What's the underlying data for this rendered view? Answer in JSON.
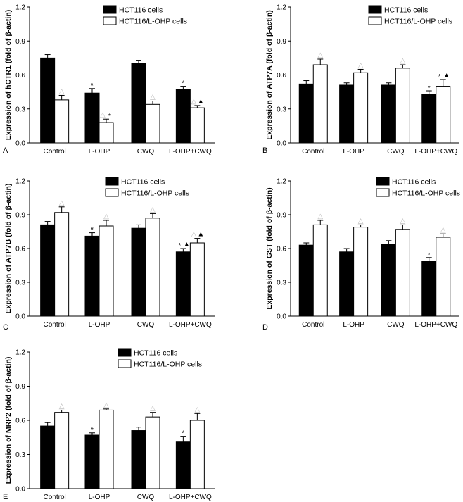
{
  "colors": {
    "series_fill": [
      "#000000",
      "#ffffff"
    ],
    "stroke": "#000000",
    "open_marker": "#bbbbbb",
    "closed_marker": "#000000"
  },
  "marker_symbols": {
    "open": "△",
    "closed": "▲",
    "star": "*"
  },
  "chart_data": [
    {
      "id": "A",
      "type": "bar",
      "panel_label": "A",
      "title": "",
      "xlabel": "",
      "ylabel": "Expression of hCTR1 (fold of β-actin)",
      "ylim": [
        0,
        1.2
      ],
      "yticks": [
        "0.0",
        "0.3",
        "0.6",
        "0.9",
        "1.2"
      ],
      "categories": [
        "Control",
        "L-OHP",
        "CWQ",
        "L-OHP+CWQ"
      ],
      "legend_position": "top-right",
      "series": [
        {
          "name": "HCT116 cells",
          "values": [
            0.75,
            0.44,
            0.7,
            0.47
          ],
          "errors": [
            0.03,
            0.04,
            0.03,
            0.03
          ],
          "marks": [
            [],
            [
              "*"
            ],
            [],
            [
              "*"
            ]
          ]
        },
        {
          "name": "HCT116/L-OHP cells",
          "values": [
            0.38,
            0.18,
            0.34,
            0.31
          ],
          "errors": [
            0.04,
            0.03,
            0.03,
            0.02
          ],
          "marks": [
            [
              "△"
            ],
            [
              "△",
              "*"
            ],
            [
              "△"
            ],
            [
              "△",
              "▲"
            ]
          ]
        }
      ]
    },
    {
      "id": "B",
      "type": "bar",
      "panel_label": "B",
      "title": "",
      "xlabel": "",
      "ylabel": "Expression of ATP7A (fold of β-actin)",
      "ylim": [
        0,
        1.2
      ],
      "yticks": [
        "0.0",
        "0.3",
        "0.6",
        "0.9",
        "1.2"
      ],
      "categories": [
        "Control",
        "L-OHP",
        "CWQ",
        "L-OHP+CWQ"
      ],
      "legend_position": "top-right",
      "series": [
        {
          "name": "HCT116 cells",
          "values": [
            0.52,
            0.51,
            0.51,
            0.43
          ],
          "errors": [
            0.03,
            0.02,
            0.02,
            0.03
          ],
          "marks": [
            [],
            [],
            [],
            [
              "*"
            ]
          ]
        },
        {
          "name": "HCT116/L-OHP cells",
          "values": [
            0.69,
            0.62,
            0.66,
            0.5
          ],
          "errors": [
            0.05,
            0.03,
            0.03,
            0.06
          ],
          "marks": [
            [
              "△"
            ],
            [
              "△"
            ],
            [
              "△"
            ],
            [
              "*",
              "▲"
            ]
          ]
        }
      ]
    },
    {
      "id": "C",
      "type": "bar",
      "panel_label": "C",
      "title": "",
      "xlabel": "",
      "ylabel": "Expression of ATP7B (fold of β-actin)",
      "ylim": [
        0,
        1.2
      ],
      "yticks": [
        "0.0",
        "0.3",
        "0.6",
        "0.9",
        "1.2"
      ],
      "categories": [
        "Control",
        "L-OHP",
        "CWQ",
        "L-OHP+CWQ"
      ],
      "legend_position": "top-right",
      "series": [
        {
          "name": "HCT116 cells",
          "values": [
            0.81,
            0.71,
            0.78,
            0.57
          ],
          "errors": [
            0.03,
            0.03,
            0.03,
            0.03
          ],
          "marks": [
            [],
            [
              "*"
            ],
            [],
            [
              "*",
              "▲"
            ]
          ]
        },
        {
          "name": "HCT116/L-OHP cells",
          "values": [
            0.92,
            0.8,
            0.87,
            0.65
          ],
          "errors": [
            0.05,
            0.05,
            0.04,
            0.04
          ],
          "marks": [
            [
              "△"
            ],
            [
              "△"
            ],
            [
              "△"
            ],
            [
              "△",
              "▲"
            ]
          ]
        }
      ]
    },
    {
      "id": "D",
      "type": "bar",
      "panel_label": "D",
      "title": "",
      "xlabel": "",
      "ylabel": "Expression of GST (fold of β-actin)",
      "ylim": [
        0,
        1.2
      ],
      "yticks": [
        "0.0",
        "0.3",
        "0.6",
        "0.9",
        "1.2"
      ],
      "categories": [
        "Control",
        "L-OHP",
        "CWQ",
        "L-OHP+CWQ"
      ],
      "legend_position": "top-right",
      "series": [
        {
          "name": "HCT116 cells",
          "values": [
            0.63,
            0.57,
            0.64,
            0.49
          ],
          "errors": [
            0.02,
            0.03,
            0.03,
            0.03
          ],
          "marks": [
            [],
            [],
            [],
            [
              "*"
            ]
          ]
        },
        {
          "name": "HCT116/L-OHP cells",
          "values": [
            0.81,
            0.79,
            0.77,
            0.7
          ],
          "errors": [
            0.04,
            0.02,
            0.04,
            0.03
          ],
          "marks": [
            [
              "△"
            ],
            [
              "△"
            ],
            [
              "△"
            ],
            [
              "△"
            ]
          ]
        }
      ]
    },
    {
      "id": "E",
      "type": "bar",
      "panel_label": "E",
      "title": "",
      "xlabel": "",
      "ylabel": "Expression of MRP2 (fold of β-actin)",
      "ylim": [
        0,
        1.2
      ],
      "yticks": [
        "0.0",
        "0.3",
        "0.6",
        "0.9",
        "1.2"
      ],
      "categories": [
        "Control",
        "L-OHP",
        "CWQ",
        "L-OHP+CWQ"
      ],
      "legend_position": "top-right",
      "series": [
        {
          "name": "HCT116 cells",
          "values": [
            0.55,
            0.47,
            0.51,
            0.41
          ],
          "errors": [
            0.03,
            0.02,
            0.03,
            0.05
          ],
          "marks": [
            [],
            [
              "*"
            ],
            [],
            [
              "*"
            ]
          ]
        },
        {
          "name": "HCT116/L-OHP cells",
          "values": [
            0.67,
            0.69,
            0.63,
            0.6
          ],
          "errors": [
            0.02,
            0.01,
            0.04,
            0.06
          ],
          "marks": [
            [
              "△"
            ],
            [
              "△"
            ],
            [
              "△"
            ],
            [
              "△"
            ]
          ]
        }
      ]
    }
  ]
}
